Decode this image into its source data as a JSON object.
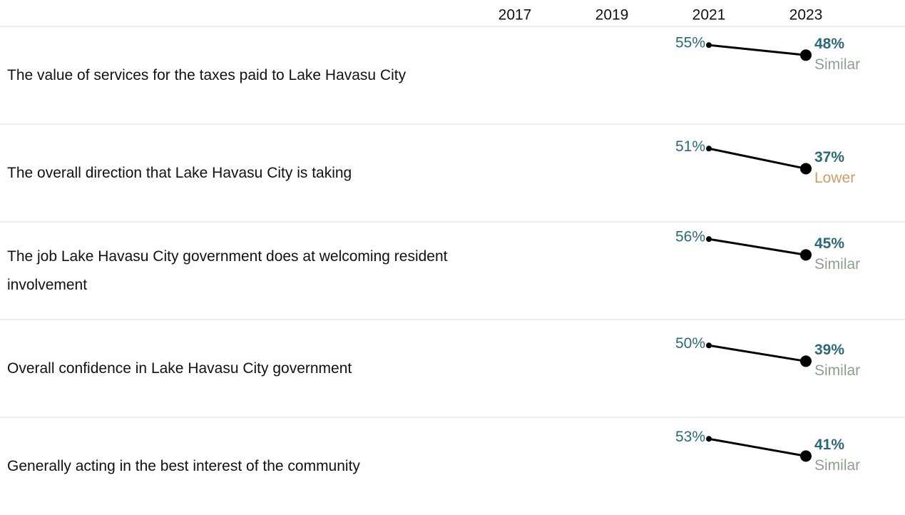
{
  "chart_data": {
    "type": "slope",
    "x": [
      2017,
      2019,
      2021,
      2023
    ],
    "xlim": [
      2016,
      2024
    ],
    "ylim": [
      0,
      68
    ],
    "line_color": "#000000",
    "value_color": "#2a6a78",
    "series": [
      {
        "name": "The value of services for the taxes paid to Lake Havasu City",
        "values": [
          null,
          null,
          55,
          48
        ],
        "value_labels": [
          null,
          null,
          "55%",
          "48%"
        ],
        "comparison": "Similar",
        "comparison_color": "#8f9e8f"
      },
      {
        "name": "The overall direction that Lake Havasu City is taking",
        "values": [
          null,
          null,
          51,
          37
        ],
        "value_labels": [
          null,
          null,
          "51%",
          "37%"
        ],
        "comparison": "Lower",
        "comparison_color": "#c9a068"
      },
      {
        "name": "The job Lake Havasu City government does at welcoming resident involvement",
        "values": [
          null,
          null,
          56,
          45
        ],
        "value_labels": [
          null,
          null,
          "56%",
          "45%"
        ],
        "comparison": "Similar",
        "comparison_color": "#8f9e8f"
      },
      {
        "name": "Overall confidence in Lake Havasu City government",
        "values": [
          null,
          null,
          50,
          39
        ],
        "value_labels": [
          null,
          null,
          "50%",
          "39%"
        ],
        "comparison": "Similar",
        "comparison_color": "#8f9e8f"
      },
      {
        "name": "Generally acting in the best interest of the community",
        "values": [
          null,
          null,
          53,
          41
        ],
        "value_labels": [
          null,
          null,
          "53%",
          "41%"
        ],
        "comparison": "Similar",
        "comparison_color": "#8f9e8f"
      }
    ]
  }
}
